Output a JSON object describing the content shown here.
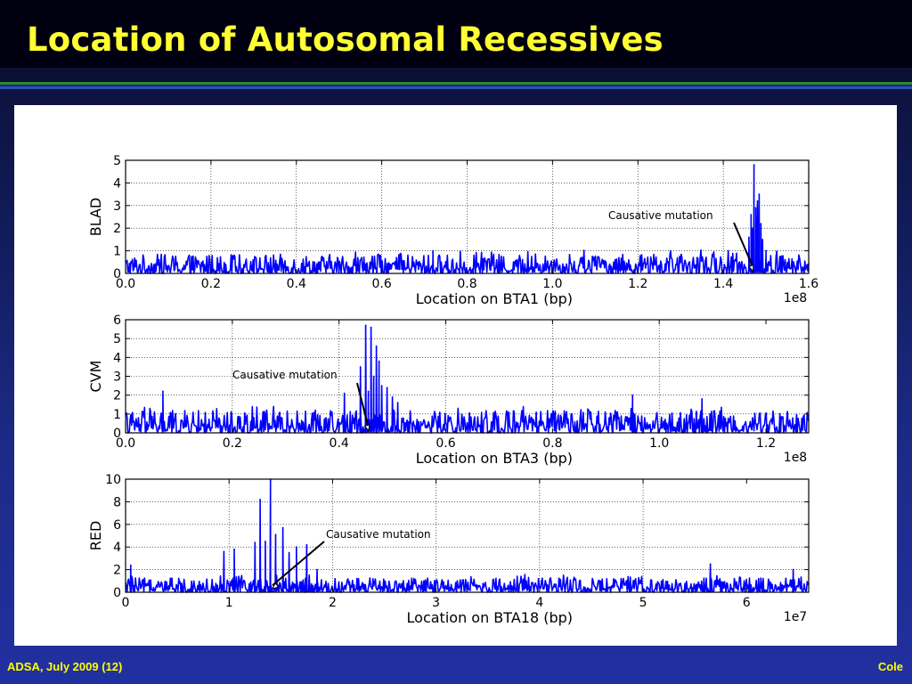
{
  "slide": {
    "title": "Location of Autosomal Recessives",
    "footer_left": "ADSA, July 2009 (12)",
    "footer_right": "Cole"
  },
  "colors": {
    "title": "#ffff33",
    "footer": "#ffff00",
    "series": "#0000ff"
  },
  "chart_data": [
    {
      "type": "line",
      "ylabel": "BLAD",
      "xlabel": "Location on BTA1 (bp)",
      "x_multiplier": "1e8",
      "xlim": [
        0,
        1.6
      ],
      "ylim": [
        0,
        5
      ],
      "x_ticks": [
        "0.0",
        "0.2",
        "0.4",
        "0.6",
        "0.8",
        "1.0",
        "1.2",
        "1.4",
        "1.6"
      ],
      "y_ticks": [
        "0",
        "1",
        "2",
        "3",
        "4",
        "5"
      ],
      "grid": true,
      "annotation": {
        "text": "Causative mutation",
        "x": 1.47,
        "y": 0.1
      },
      "series": [
        {
          "color": "#0000ff",
          "baseline_max": 1.0,
          "peaks": [
            {
              "x": 1.46,
              "y": 1.6
            },
            {
              "x": 1.465,
              "y": 2.6
            },
            {
              "x": 1.468,
              "y": 2.0
            },
            {
              "x": 1.472,
              "y": 4.8
            },
            {
              "x": 1.476,
              "y": 2.9
            },
            {
              "x": 1.48,
              "y": 3.2
            },
            {
              "x": 1.484,
              "y": 3.5
            },
            {
              "x": 1.488,
              "y": 2.2
            },
            {
              "x": 1.492,
              "y": 1.5
            },
            {
              "x": 1.5,
              "y": 1.0
            },
            {
              "x": 0.72,
              "y": 1.0
            }
          ]
        }
      ]
    },
    {
      "type": "line",
      "ylabel": "CVM",
      "xlabel": "Location on BTA3 (bp)",
      "x_multiplier": "1e8",
      "xlim": [
        0,
        1.28
      ],
      "ylim": [
        0,
        6
      ],
      "x_ticks": [
        "0.0",
        "0.2",
        "0.4",
        "0.6",
        "0.8",
        "1.0",
        "1.2"
      ],
      "y_ticks": [
        "0",
        "1",
        "2",
        "3",
        "4",
        "5",
        "6"
      ],
      "grid": true,
      "annotation": {
        "text": "Causative mutation",
        "x": 0.455,
        "y": 0.1
      },
      "series": [
        {
          "color": "#0000ff",
          "baseline_max": 1.4,
          "peaks": [
            {
              "x": 0.07,
              "y": 2.2
            },
            {
              "x": 0.41,
              "y": 2.1
            },
            {
              "x": 0.44,
              "y": 3.5
            },
            {
              "x": 0.45,
              "y": 5.7
            },
            {
              "x": 0.455,
              "y": 2.2
            },
            {
              "x": 0.46,
              "y": 5.6
            },
            {
              "x": 0.465,
              "y": 3.0
            },
            {
              "x": 0.47,
              "y": 4.6
            },
            {
              "x": 0.475,
              "y": 3.8
            },
            {
              "x": 0.48,
              "y": 2.5
            },
            {
              "x": 0.49,
              "y": 2.4
            },
            {
              "x": 0.5,
              "y": 1.9
            },
            {
              "x": 0.51,
              "y": 1.6
            },
            {
              "x": 0.95,
              "y": 2.0
            },
            {
              "x": 1.08,
              "y": 1.8
            }
          ]
        }
      ]
    },
    {
      "type": "line",
      "ylabel": "RED",
      "xlabel": "Location on BTA18 (bp)",
      "x_multiplier": "1e7",
      "xlim": [
        0,
        6.6
      ],
      "ylim": [
        0,
        10
      ],
      "x_ticks": [
        "0",
        "1",
        "2",
        "3",
        "4",
        "5",
        "6"
      ],
      "y_ticks": [
        "0",
        "2",
        "4",
        "6",
        "8",
        "10"
      ],
      "grid": true,
      "annotation": {
        "text": "Causative mutation",
        "x": 1.42,
        "y": 0.3
      },
      "series": [
        {
          "color": "#0000ff",
          "baseline_max": 1.5,
          "peaks": [
            {
              "x": 0.05,
              "y": 2.4
            },
            {
              "x": 0.95,
              "y": 3.6
            },
            {
              "x": 1.05,
              "y": 3.8
            },
            {
              "x": 1.25,
              "y": 4.4
            },
            {
              "x": 1.3,
              "y": 8.2
            },
            {
              "x": 1.35,
              "y": 4.5
            },
            {
              "x": 1.4,
              "y": 10.0
            },
            {
              "x": 1.45,
              "y": 5.1
            },
            {
              "x": 1.52,
              "y": 5.7
            },
            {
              "x": 1.58,
              "y": 3.5
            },
            {
              "x": 1.65,
              "y": 4.0
            },
            {
              "x": 1.75,
              "y": 4.2
            },
            {
              "x": 1.85,
              "y": 2.0
            },
            {
              "x": 5.65,
              "y": 2.5
            },
            {
              "x": 6.45,
              "y": 2.0
            }
          ]
        }
      ]
    }
  ]
}
